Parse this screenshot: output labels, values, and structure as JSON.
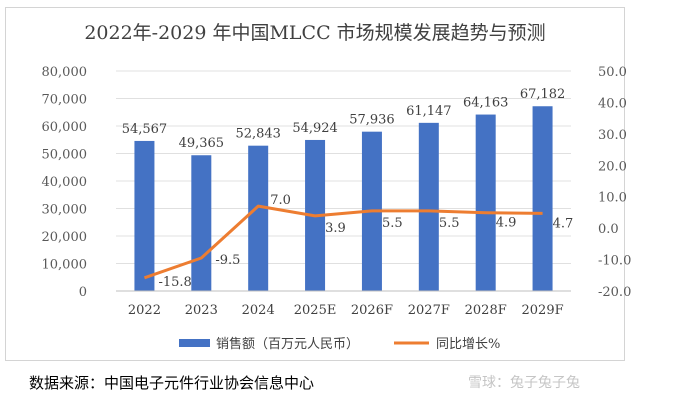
{
  "chart_data": {
    "type": "bar+line",
    "title": "2022年-2029 年中国MLCC 市场规模发展趋势与预测",
    "categories": [
      "2022",
      "2023",
      "2024",
      "2025E",
      "2026F",
      "2027F",
      "2028F",
      "2029F"
    ],
    "series": [
      {
        "name": "销售额（百万元人民币）",
        "type": "bar",
        "axis": "left",
        "values": [
          54567,
          49365,
          52843,
          54924,
          57936,
          61147,
          64163,
          67182
        ],
        "labels": [
          "54,567",
          "49,365",
          "52,843",
          "54,924",
          "57,936",
          "61,147",
          "64,163",
          "67,182"
        ]
      },
      {
        "name": "同比增长%",
        "type": "line",
        "axis": "right",
        "values": [
          -15.8,
          -9.5,
          7.0,
          3.9,
          5.5,
          5.5,
          4.9,
          4.7
        ],
        "labels": [
          "-15.8",
          "-9.5",
          "7.0",
          "3.9",
          "5.5",
          "5.5",
          "4.9",
          "4.7"
        ]
      }
    ],
    "y_left": {
      "min": 0,
      "max": 80000,
      "ticks": [
        "0",
        "10,000",
        "20,000",
        "30,000",
        "40,000",
        "50,000",
        "60,000",
        "70,000",
        "80,000"
      ]
    },
    "y_right": {
      "min": -20,
      "max": 50,
      "ticks": [
        "-20.0",
        "-10.0",
        "0.0",
        "10.0",
        "20.0",
        "30.0",
        "40.0",
        "50.0"
      ]
    },
    "legend_position": "bottom",
    "colors": {
      "bar": "#4472c4",
      "line": "#ed7d31"
    }
  },
  "footer": {
    "source": "数据来源：中国电子元件行业协会信息中心",
    "watermark": "雪球：兔子兔子兔"
  }
}
